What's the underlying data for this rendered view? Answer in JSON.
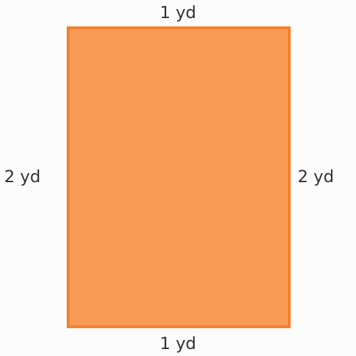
{
  "shape": {
    "fill_color": "#f99b55",
    "border_color": "#f47f2b"
  },
  "labels": {
    "top": "1 yd",
    "bottom": "1 yd",
    "left": "2 yd",
    "right": "2 yd"
  }
}
